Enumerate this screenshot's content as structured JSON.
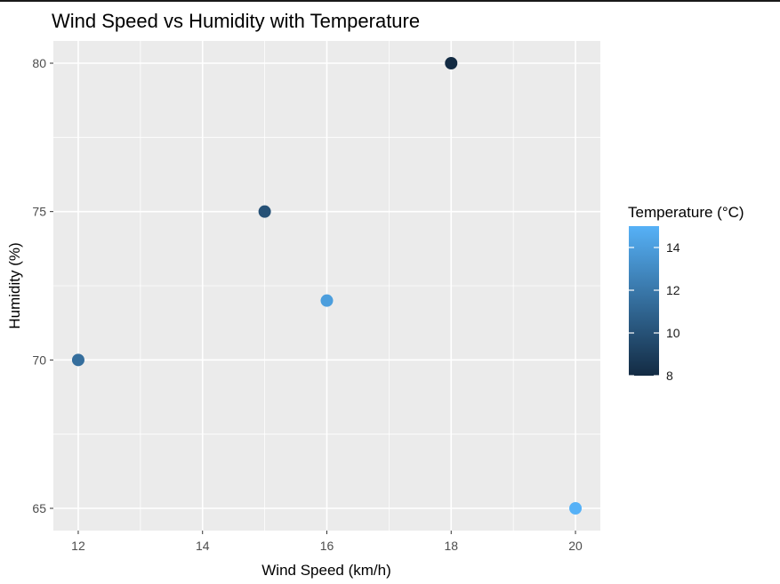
{
  "chart_data": {
    "type": "scatter",
    "title": "Wind Speed vs Humidity with Temperature",
    "xlabel": "Wind Speed (km/h)",
    "ylabel": "Humidity (%)",
    "xlim": [
      11.6,
      20.4
    ],
    "ylim": [
      64.25,
      80.75
    ],
    "x_ticks": [
      12,
      14,
      16,
      18,
      20
    ],
    "y_ticks": [
      65,
      70,
      75,
      80
    ],
    "grid": true,
    "points": [
      {
        "x": 12,
        "y": 70,
        "temperature": 11.5
      },
      {
        "x": 15,
        "y": 75,
        "temperature": 10.0
      },
      {
        "x": 16,
        "y": 72,
        "temperature": 14.0
      },
      {
        "x": 18,
        "y": 80,
        "temperature": 8.0
      },
      {
        "x": 20,
        "y": 65,
        "temperature": 15.0
      }
    ],
    "legend": {
      "title": "Temperature (°C)",
      "placement": "right",
      "type": "colorbar",
      "range": [
        8,
        15
      ],
      "ticks": [
        8,
        10,
        12,
        14
      ],
      "low_color": "#132B43",
      "high_color": "#56B1F7"
    },
    "panel_background": "#EBEBEB",
    "grid_color": "#FFFFFF"
  }
}
